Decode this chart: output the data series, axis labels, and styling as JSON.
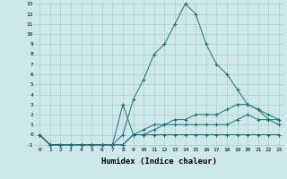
{
  "xlabel": "Humidex (Indice chaleur)",
  "background_color": "#cce8e8",
  "line_color": "#1a7070",
  "grid_color": "#aacccc",
  "xlim": [
    -0.5,
    23.5
  ],
  "ylim": [
    -1.2,
    13.2
  ],
  "xticks": [
    0,
    1,
    2,
    3,
    4,
    5,
    6,
    7,
    8,
    9,
    10,
    11,
    12,
    13,
    14,
    15,
    16,
    17,
    18,
    19,
    20,
    21,
    22,
    23
  ],
  "yticks": [
    -1,
    0,
    1,
    2,
    3,
    4,
    5,
    6,
    7,
    8,
    9,
    10,
    11,
    12,
    13
  ],
  "lines": [
    {
      "x": [
        0,
        1,
        2,
        3,
        4,
        5,
        6,
        7,
        8,
        9,
        10,
        11,
        12,
        13,
        14,
        15,
        16,
        17,
        18,
        19,
        20,
        21,
        22,
        23
      ],
      "y": [
        0,
        -1,
        -1,
        -1,
        -1,
        -1,
        -1,
        -1,
        0,
        3.5,
        5.5,
        8,
        9,
        11,
        13,
        12,
        9,
        7,
        6,
        4.5,
        3,
        2.5,
        1.5,
        1.5
      ]
    },
    {
      "x": [
        0,
        1,
        2,
        3,
        4,
        5,
        6,
        7,
        8,
        9,
        10,
        11,
        12,
        13,
        14,
        15,
        16,
        17,
        18,
        19,
        20,
        21,
        22,
        23
      ],
      "y": [
        0,
        -1,
        -1,
        -1,
        -1,
        -1,
        -1,
        -1,
        3,
        0,
        0,
        0,
        0,
        0,
        0,
        0,
        0,
        0,
        0,
        0,
        0,
        0,
        0,
        0
      ]
    },
    {
      "x": [
        0,
        1,
        2,
        3,
        4,
        5,
        6,
        7,
        8,
        9,
        10,
        11,
        12,
        13,
        14,
        15,
        16,
        17,
        18,
        19,
        20,
        21,
        22,
        23
      ],
      "y": [
        0,
        -1,
        -1,
        -1,
        -1,
        -1,
        -1,
        -1,
        -1,
        0,
        0.5,
        1,
        1,
        1.5,
        1.5,
        2,
        2,
        2,
        2.5,
        3,
        3,
        2.5,
        2,
        1.5
      ]
    },
    {
      "x": [
        0,
        1,
        2,
        3,
        4,
        5,
        6,
        7,
        8,
        9,
        10,
        11,
        12,
        13,
        14,
        15,
        16,
        17,
        18,
        19,
        20,
        21,
        22,
        23
      ],
      "y": [
        0,
        -1,
        -1,
        -1,
        -1,
        -1,
        -1,
        -1,
        -1,
        0,
        0,
        0.5,
        1,
        1,
        1,
        1,
        1,
        1,
        1,
        1.5,
        2,
        1.5,
        1.5,
        1
      ]
    }
  ]
}
